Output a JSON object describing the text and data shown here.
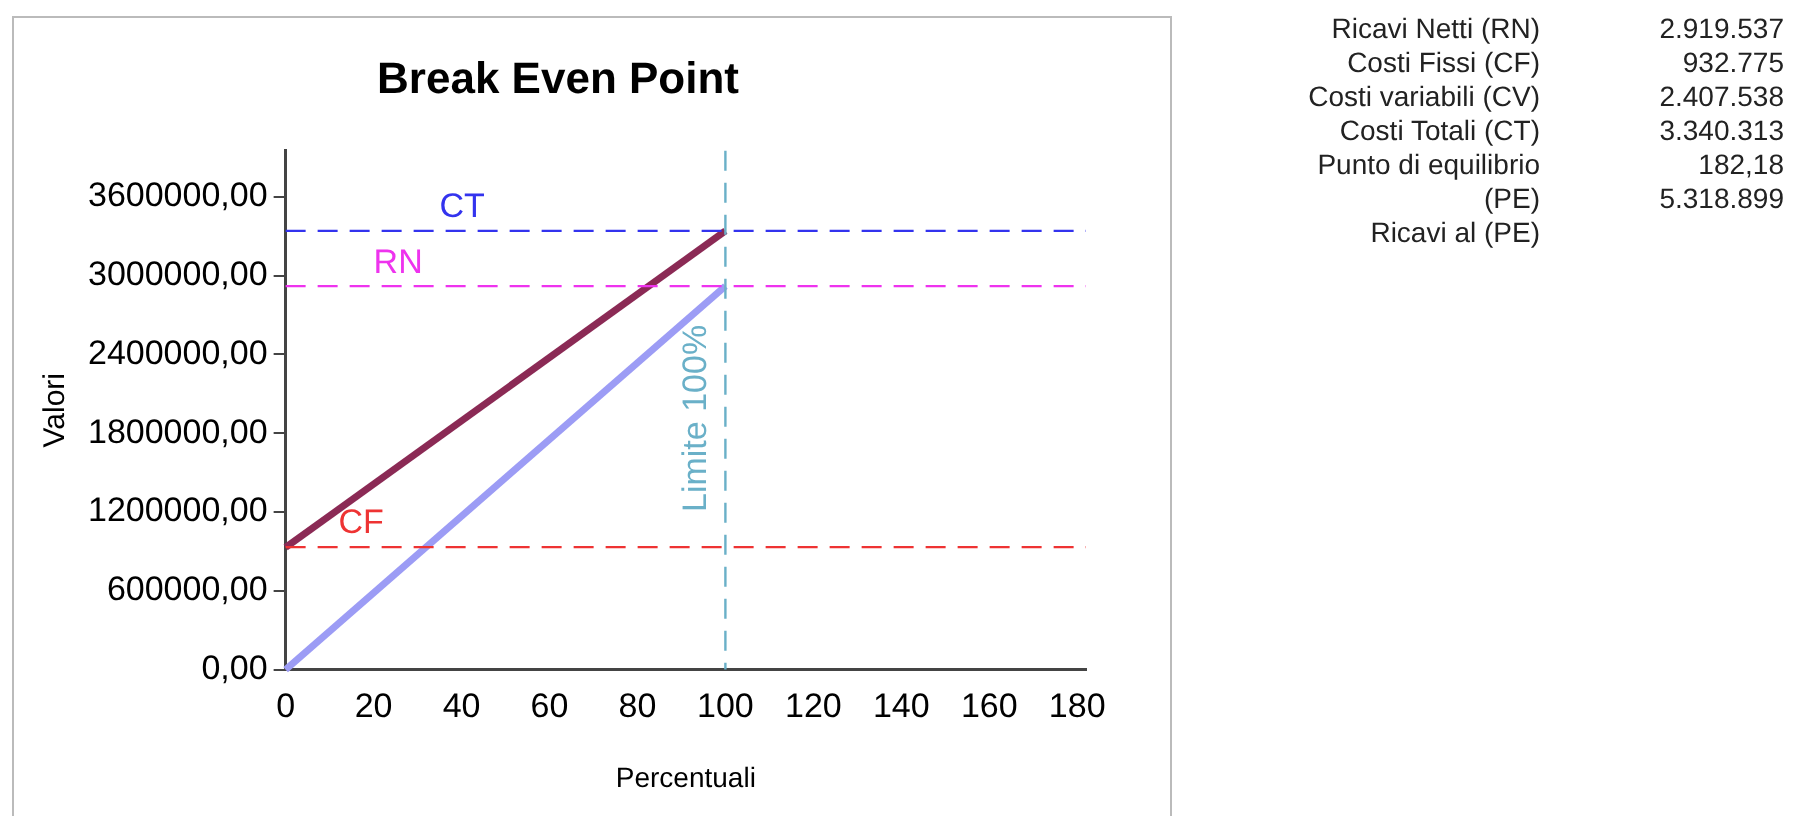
{
  "chart_data": {
    "type": "line",
    "title": "Break Even Point",
    "xlabel": "Percentuali",
    "ylabel": "Valori",
    "xlim": [
      0,
      182
    ],
    "xticks": [
      0,
      20,
      40,
      60,
      80,
      100,
      120,
      140,
      160,
      180
    ],
    "ylim": [
      0,
      3950000
    ],
    "yticks": [
      {
        "value": 0,
        "label": "0,00"
      },
      {
        "value": 600000,
        "label": "600000,00"
      },
      {
        "value": 1200000,
        "label": "1200000,00"
      },
      {
        "value": 1800000,
        "label": "1800000,00"
      },
      {
        "value": 2400000,
        "label": "2400000,00"
      },
      {
        "value": 3000000,
        "label": "3000000,00"
      },
      {
        "value": 3600000,
        "label": "3600000,00"
      }
    ],
    "series": [
      {
        "color": "#8b2a55",
        "values": [
          930000,
          3340000
        ]
      },
      {
        "color": "#9c9cf5",
        "values": [
          0,
          2920000
        ]
      }
    ],
    "x": [
      0,
      100
    ],
    "ref_lines": [
      {
        "axis": "y",
        "value": 3340313,
        "label": "CT",
        "color": "#3333ee",
        "line_style": "dashed"
      },
      {
        "axis": "y",
        "value": 2919537,
        "label": "RN",
        "color": "#ee33ee",
        "line_style": "dashed"
      },
      {
        "axis": "y",
        "value": 932775,
        "label": "CF",
        "color": "#ee3333",
        "line_style": "dashed"
      },
      {
        "axis": "x",
        "value": 100,
        "label": "Limite 100%",
        "color": "#6ab0c8",
        "line_style": "dashed"
      }
    ],
    "annotations": [
      "Ricavi Netti (RN)",
      "2.919.537",
      "Costi Fissi (CF)",
      "932.775",
      "Costi variabili (CV)",
      "2.407.538",
      "Costi Totali (CT)",
      "3.340.313",
      "Punto di equilibrio",
      "182,18",
      "(PE)",
      "5.318.899",
      "Ricavi al (PE)"
    ],
    "grid": false,
    "legend": false,
    "marker": "none",
    "line_style": "solid"
  }
}
